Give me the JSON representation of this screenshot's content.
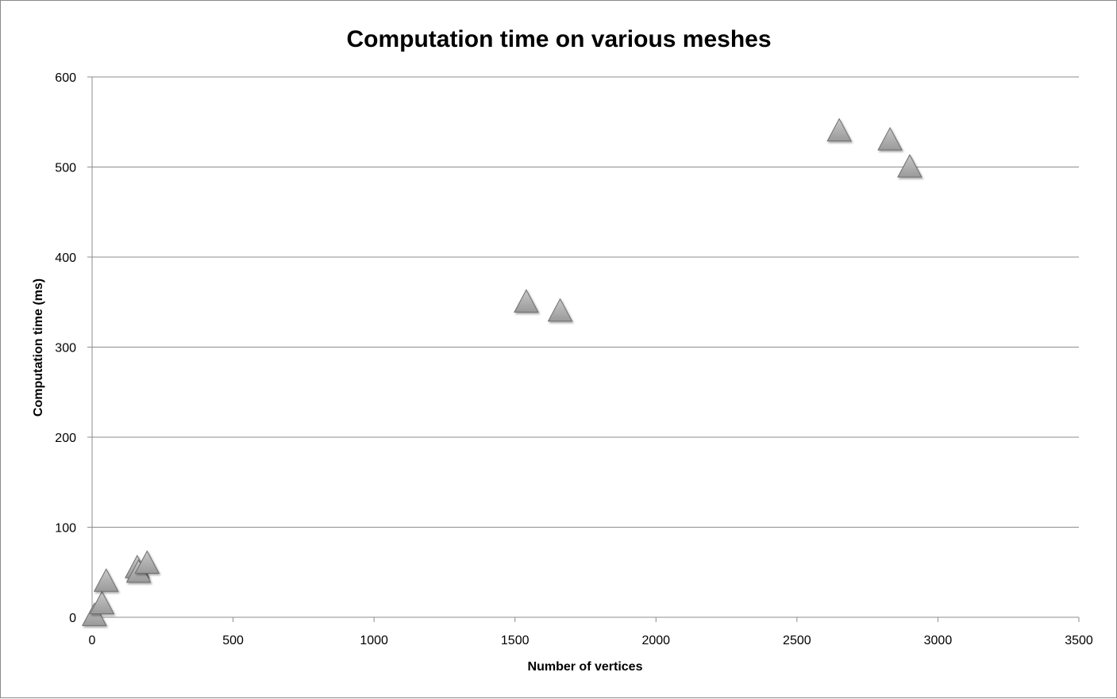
{
  "chart_data": {
    "type": "scatter",
    "title": "Computation time on various meshes",
    "xlabel": "Number of vertices",
    "ylabel": "Computation time (ms)",
    "xlim": [
      0,
      3500
    ],
    "ylim": [
      0,
      600
    ],
    "x_ticks": [
      0,
      500,
      1000,
      1500,
      2000,
      2500,
      3000,
      3500
    ],
    "y_ticks": [
      0,
      100,
      200,
      300,
      400,
      500,
      600
    ],
    "grid": "horizontal",
    "marker": "triangle",
    "marker_color": "#9a9a9a",
    "legend": "none",
    "points": [
      {
        "x": 8,
        "y": 2
      },
      {
        "x": 35,
        "y": 15
      },
      {
        "x": 50,
        "y": 40
      },
      {
        "x": 160,
        "y": 55
      },
      {
        "x": 165,
        "y": 50
      },
      {
        "x": 195,
        "y": 60
      },
      {
        "x": 1540,
        "y": 350
      },
      {
        "x": 1660,
        "y": 340
      },
      {
        "x": 2650,
        "y": 540
      },
      {
        "x": 2830,
        "y": 530
      },
      {
        "x": 2900,
        "y": 500
      }
    ]
  }
}
